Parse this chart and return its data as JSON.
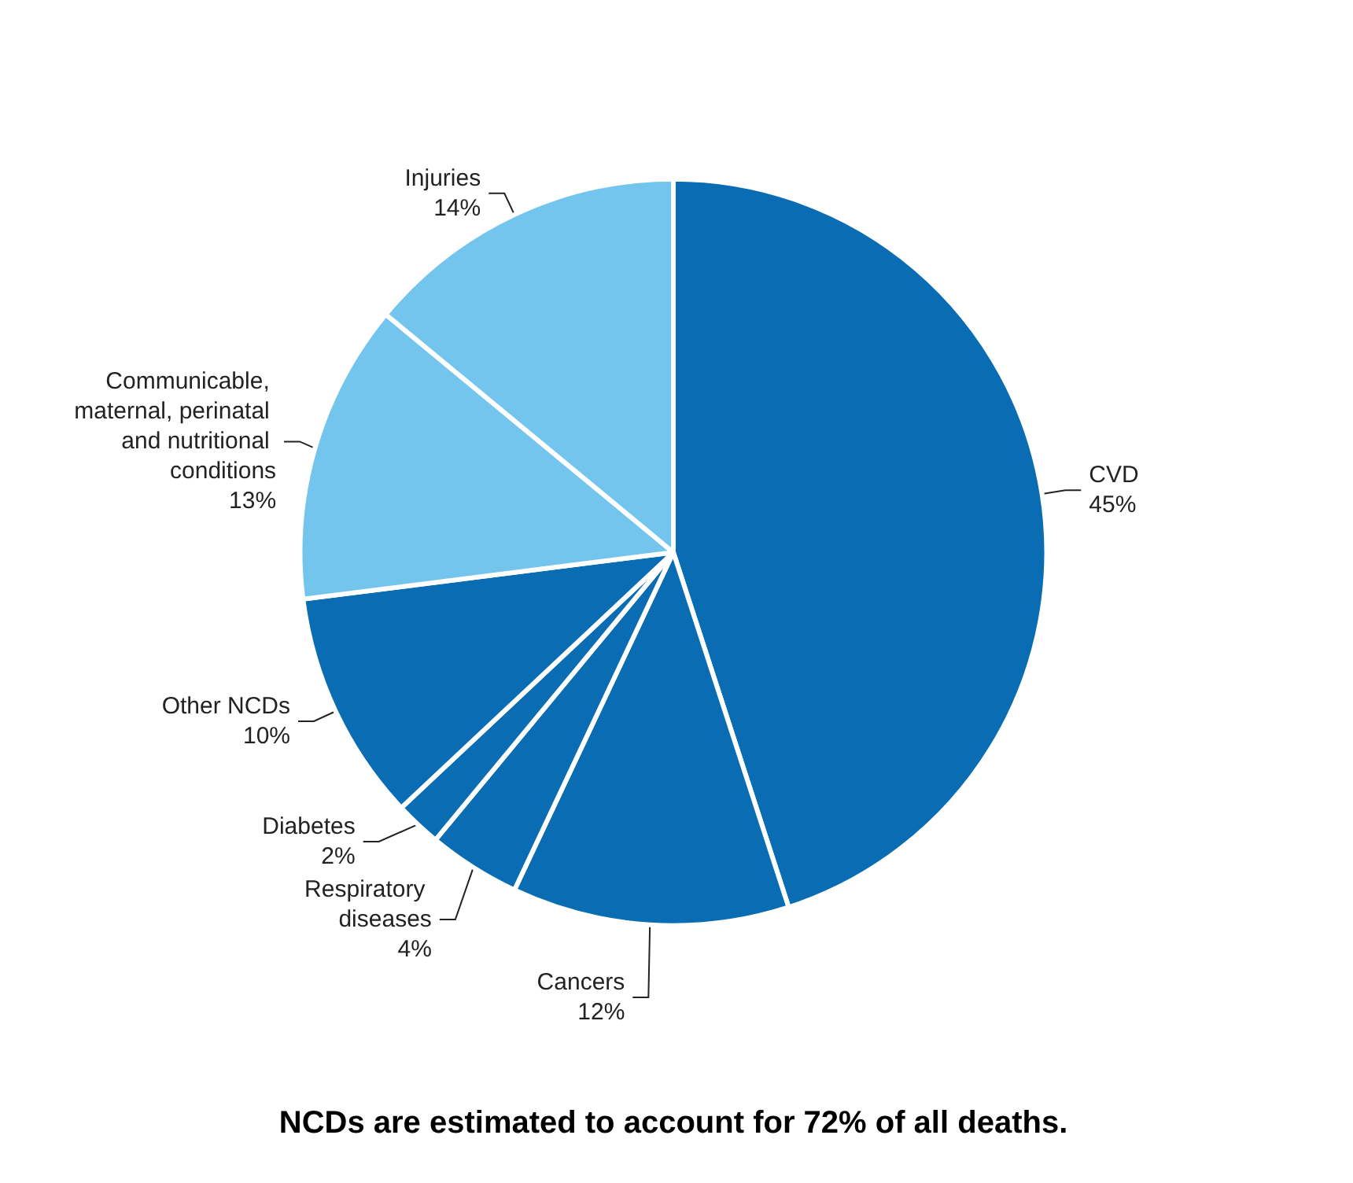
{
  "chart_data": {
    "type": "pie",
    "categories": [
      "CVD",
      "Cancers",
      "Respiratory diseases",
      "Diabetes",
      "Other NCDs",
      "Communicable, maternal, perinatal and nutritional conditions",
      "Injuries"
    ],
    "values": [
      45,
      12,
      4,
      2,
      10,
      13,
      14
    ],
    "value_labels": [
      "45%",
      "12%",
      "4%",
      "2%",
      "10%",
      "13%",
      "14%"
    ],
    "colors": [
      "#0a6db4",
      "#0a6db4",
      "#0a6db4",
      "#0a6db4",
      "#0a6db4",
      "#74c5ee",
      "#74c5ee"
    ],
    "legend": false,
    "annotations": [
      "NCDs are estimated to account for 72% of all deaths."
    ]
  }
}
